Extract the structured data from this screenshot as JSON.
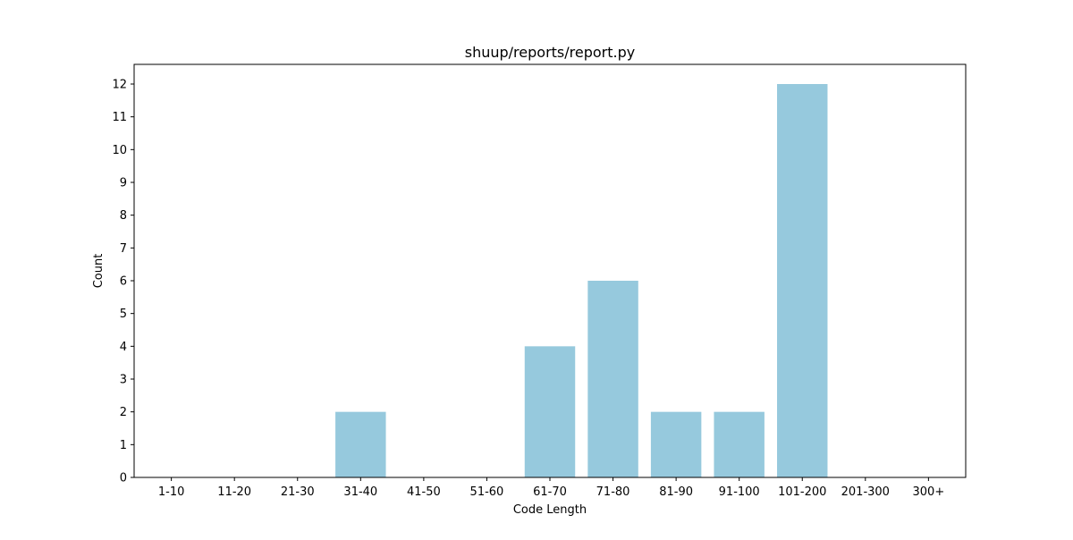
{
  "chart_data": {
    "type": "bar",
    "title": "shuup/reports/report.py",
    "xlabel": "Code Length",
    "ylabel": "Count",
    "categories": [
      "1-10",
      "11-20",
      "21-30",
      "31-40",
      "41-50",
      "51-60",
      "61-70",
      "71-80",
      "81-90",
      "91-100",
      "101-200",
      "201-300",
      "300+"
    ],
    "values": [
      0,
      0,
      0,
      2,
      0,
      0,
      4,
      6,
      2,
      2,
      12,
      0,
      0
    ],
    "ylim": [
      0,
      12.6
    ],
    "yticks": [
      0,
      1,
      2,
      3,
      4,
      5,
      6,
      7,
      8,
      9,
      10,
      11,
      12
    ],
    "grid": false,
    "bar_color": "#96c9dd"
  }
}
